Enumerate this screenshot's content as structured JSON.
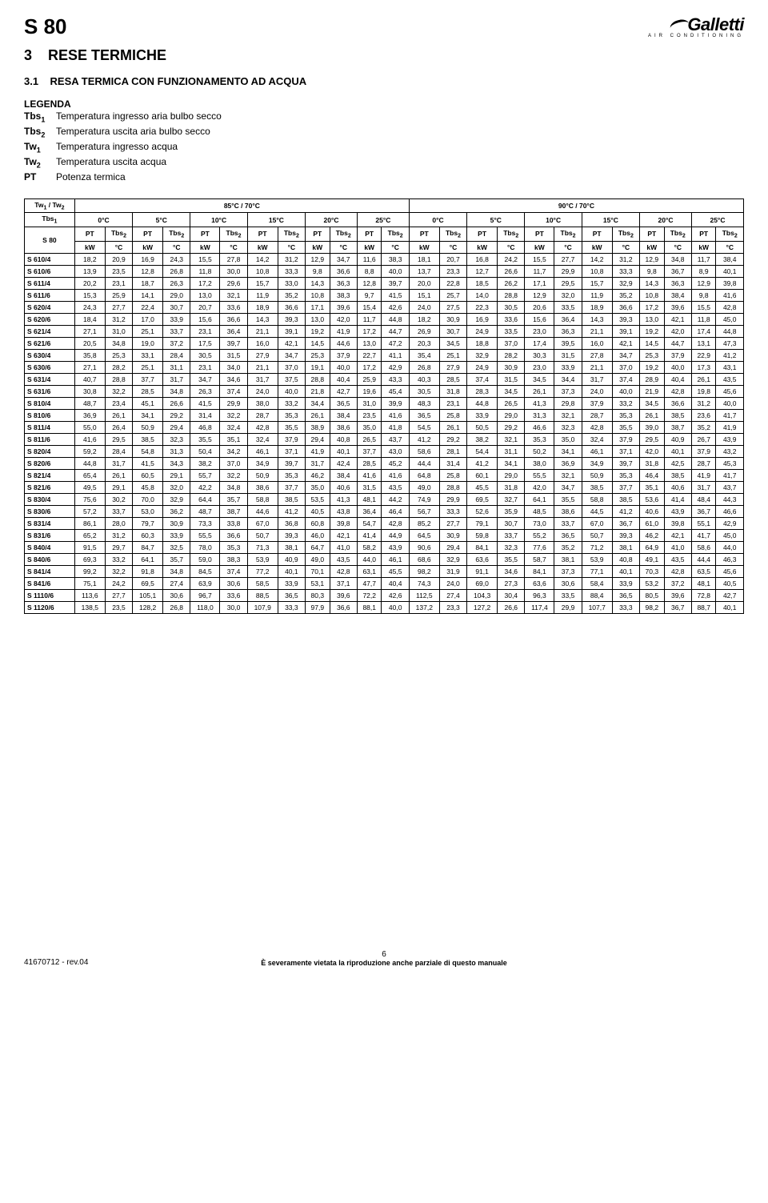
{
  "header": {
    "model": "S 80",
    "brand": "Galletti",
    "brand_sub": "AIR CONDITIONING"
  },
  "section": {
    "num": "3",
    "title": "RESE TERMICHE",
    "sub_num": "3.1",
    "sub_title": "RESA TERMICA CON FUNZIONAMENTO AD ACQUA"
  },
  "legenda": {
    "title": "LEGENDA",
    "items": [
      {
        "key": "Tbs",
        "sub": "1",
        "desc": "Temperatura ingresso aria bulbo secco"
      },
      {
        "key": "Tbs",
        "sub": "2",
        "desc": "Temperatura uscita aria bulbo secco"
      },
      {
        "key": "Tw",
        "sub": "1",
        "desc": "Temperatura ingresso acqua"
      },
      {
        "key": "Tw",
        "sub": "2",
        "desc": "Temperatura uscita acqua"
      },
      {
        "key": "PT",
        "sub": "",
        "desc": "Potenza termica"
      }
    ]
  },
  "table": {
    "tw_label": "Tw₁ / Tw₂",
    "tw_groups": [
      "85°C / 70°C",
      "90°C / 70°C"
    ],
    "tbs1_label": "Tbs₁",
    "tbs1_cols": [
      "0°C",
      "5°C",
      "10°C",
      "15°C",
      "20°C",
      "25°C",
      "0°C",
      "5°C",
      "10°C",
      "15°C",
      "20°C",
      "25°C"
    ],
    "model_label": "S 80",
    "pt_label": "PT",
    "tbs2_label": "Tbs₂",
    "unit_row": [
      "kW",
      "°C",
      "kW",
      "°C",
      "kW",
      "°C",
      "kW",
      "°C",
      "kW",
      "°C",
      "kW",
      "°C",
      "kW",
      "°C",
      "kW",
      "°C",
      "kW",
      "°C",
      "kW",
      "°C",
      "kW",
      "°C",
      "kW",
      "°C"
    ],
    "rows": [
      {
        "label": "S 610/4",
        "v": [
          "18,2",
          "20,9",
          "16,9",
          "24,3",
          "15,5",
          "27,8",
          "14,2",
          "31,2",
          "12,9",
          "34,7",
          "11,6",
          "38,3",
          "18,1",
          "20,7",
          "16,8",
          "24,2",
          "15,5",
          "27,7",
          "14,2",
          "31,2",
          "12,9",
          "34,8",
          "11,7",
          "38,4"
        ]
      },
      {
        "label": "S 610/6",
        "v": [
          "13,9",
          "23,5",
          "12,8",
          "26,8",
          "11,8",
          "30,0",
          "10,8",
          "33,3",
          "9,8",
          "36,6",
          "8,8",
          "40,0",
          "13,7",
          "23,3",
          "12,7",
          "26,6",
          "11,7",
          "29,9",
          "10,8",
          "33,3",
          "9,8",
          "36,7",
          "8,9",
          "40,1"
        ]
      },
      {
        "label": "S 611/4",
        "v": [
          "20,2",
          "23,1",
          "18,7",
          "26,3",
          "17,2",
          "29,6",
          "15,7",
          "33,0",
          "14,3",
          "36,3",
          "12,8",
          "39,7",
          "20,0",
          "22,8",
          "18,5",
          "26,2",
          "17,1",
          "29,5",
          "15,7",
          "32,9",
          "14,3",
          "36,3",
          "12,9",
          "39,8"
        ]
      },
      {
        "label": "S 611/6",
        "v": [
          "15,3",
          "25,9",
          "14,1",
          "29,0",
          "13,0",
          "32,1",
          "11,9",
          "35,2",
          "10,8",
          "38,3",
          "9,7",
          "41,5",
          "15,1",
          "25,7",
          "14,0",
          "28,8",
          "12,9",
          "32,0",
          "11,9",
          "35,2",
          "10,8",
          "38,4",
          "9,8",
          "41,6"
        ]
      },
      {
        "label": "S 620/4",
        "v": [
          "24,3",
          "27,7",
          "22,4",
          "30,7",
          "20,7",
          "33,6",
          "18,9",
          "36,6",
          "17,1",
          "39,6",
          "15,4",
          "42,6",
          "24,0",
          "27,5",
          "22,3",
          "30,5",
          "20,6",
          "33,5",
          "18,9",
          "36,6",
          "17,2",
          "39,6",
          "15,5",
          "42,8"
        ]
      },
      {
        "label": "S 620/6",
        "v": [
          "18,4",
          "31,2",
          "17,0",
          "33,9",
          "15,6",
          "36,6",
          "14,3",
          "39,3",
          "13,0",
          "42,0",
          "11,7",
          "44,8",
          "18,2",
          "30,9",
          "16,9",
          "33,6",
          "15,6",
          "36,4",
          "14,3",
          "39,3",
          "13,0",
          "42,1",
          "11,8",
          "45,0"
        ]
      },
      {
        "label": "S 621/4",
        "v": [
          "27,1",
          "31,0",
          "25,1",
          "33,7",
          "23,1",
          "36,4",
          "21,1",
          "39,1",
          "19,2",
          "41,9",
          "17,2",
          "44,7",
          "26,9",
          "30,7",
          "24,9",
          "33,5",
          "23,0",
          "36,3",
          "21,1",
          "39,1",
          "19,2",
          "42,0",
          "17,4",
          "44,8"
        ]
      },
      {
        "label": "S 621/6",
        "v": [
          "20,5",
          "34,8",
          "19,0",
          "37,2",
          "17,5",
          "39,7",
          "16,0",
          "42,1",
          "14,5",
          "44,6",
          "13,0",
          "47,2",
          "20,3",
          "34,5",
          "18,8",
          "37,0",
          "17,4",
          "39,5",
          "16,0",
          "42,1",
          "14,5",
          "44,7",
          "13,1",
          "47,3"
        ]
      },
      {
        "label": "S 630/4",
        "v": [
          "35,8",
          "25,3",
          "33,1",
          "28,4",
          "30,5",
          "31,5",
          "27,9",
          "34,7",
          "25,3",
          "37,9",
          "22,7",
          "41,1",
          "35,4",
          "25,1",
          "32,9",
          "28,2",
          "30,3",
          "31,5",
          "27,8",
          "34,7",
          "25,3",
          "37,9",
          "22,9",
          "41,2"
        ]
      },
      {
        "label": "S 630/6",
        "v": [
          "27,1",
          "28,2",
          "25,1",
          "31,1",
          "23,1",
          "34,0",
          "21,1",
          "37,0",
          "19,1",
          "40,0",
          "17,2",
          "42,9",
          "26,8",
          "27,9",
          "24,9",
          "30,9",
          "23,0",
          "33,9",
          "21,1",
          "37,0",
          "19,2",
          "40,0",
          "17,3",
          "43,1"
        ]
      },
      {
        "label": "S 631/4",
        "v": [
          "40,7",
          "28,8",
          "37,7",
          "31,7",
          "34,7",
          "34,6",
          "31,7",
          "37,5",
          "28,8",
          "40,4",
          "25,9",
          "43,3",
          "40,3",
          "28,5",
          "37,4",
          "31,5",
          "34,5",
          "34,4",
          "31,7",
          "37,4",
          "28,9",
          "40,4",
          "26,1",
          "43,5"
        ]
      },
      {
        "label": "S 631/6",
        "v": [
          "30,8",
          "32,2",
          "28,5",
          "34,8",
          "26,3",
          "37,4",
          "24,0",
          "40,0",
          "21,8",
          "42,7",
          "19,6",
          "45,4",
          "30,5",
          "31,8",
          "28,3",
          "34,5",
          "26,1",
          "37,3",
          "24,0",
          "40,0",
          "21,9",
          "42,8",
          "19,8",
          "45,6"
        ]
      },
      {
        "label": "S 810/4",
        "v": [
          "48,7",
          "23,4",
          "45,1",
          "26,6",
          "41,5",
          "29,9",
          "38,0",
          "33,2",
          "34,4",
          "36,5",
          "31,0",
          "39,9",
          "48,3",
          "23,1",
          "44,8",
          "26,5",
          "41,3",
          "29,8",
          "37,9",
          "33,2",
          "34,5",
          "36,6",
          "31,2",
          "40,0"
        ]
      },
      {
        "label": "S 810/6",
        "v": [
          "36,9",
          "26,1",
          "34,1",
          "29,2",
          "31,4",
          "32,2",
          "28,7",
          "35,3",
          "26,1",
          "38,4",
          "23,5",
          "41,6",
          "36,5",
          "25,8",
          "33,9",
          "29,0",
          "31,3",
          "32,1",
          "28,7",
          "35,3",
          "26,1",
          "38,5",
          "23,6",
          "41,7"
        ]
      },
      {
        "label": "S 811/4",
        "v": [
          "55,0",
          "26,4",
          "50,9",
          "29,4",
          "46,8",
          "32,4",
          "42,8",
          "35,5",
          "38,9",
          "38,6",
          "35,0",
          "41,8",
          "54,5",
          "26,1",
          "50,5",
          "29,2",
          "46,6",
          "32,3",
          "42,8",
          "35,5",
          "39,0",
          "38,7",
          "35,2",
          "41,9"
        ]
      },
      {
        "label": "S 811/6",
        "v": [
          "41,6",
          "29,5",
          "38,5",
          "32,3",
          "35,5",
          "35,1",
          "32,4",
          "37,9",
          "29,4",
          "40,8",
          "26,5",
          "43,7",
          "41,2",
          "29,2",
          "38,2",
          "32,1",
          "35,3",
          "35,0",
          "32,4",
          "37,9",
          "29,5",
          "40,9",
          "26,7",
          "43,9"
        ]
      },
      {
        "label": "S 820/4",
        "v": [
          "59,2",
          "28,4",
          "54,8",
          "31,3",
          "50,4",
          "34,2",
          "46,1",
          "37,1",
          "41,9",
          "40,1",
          "37,7",
          "43,0",
          "58,6",
          "28,1",
          "54,4",
          "31,1",
          "50,2",
          "34,1",
          "46,1",
          "37,1",
          "42,0",
          "40,1",
          "37,9",
          "43,2"
        ]
      },
      {
        "label": "S 820/6",
        "v": [
          "44,8",
          "31,7",
          "41,5",
          "34,3",
          "38,2",
          "37,0",
          "34,9",
          "39,7",
          "31,7",
          "42,4",
          "28,5",
          "45,2",
          "44,4",
          "31,4",
          "41,2",
          "34,1",
          "38,0",
          "36,9",
          "34,9",
          "39,7",
          "31,8",
          "42,5",
          "28,7",
          "45,3"
        ]
      },
      {
        "label": "S 821/4",
        "v": [
          "65,4",
          "26,1",
          "60,5",
          "29,1",
          "55,7",
          "32,2",
          "50,9",
          "35,3",
          "46,2",
          "38,4",
          "41,6",
          "41,6",
          "64,8",
          "25,8",
          "60,1",
          "29,0",
          "55,5",
          "32,1",
          "50,9",
          "35,3",
          "46,4",
          "38,5",
          "41,9",
          "41,7"
        ]
      },
      {
        "label": "S 821/6",
        "v": [
          "49,5",
          "29,1",
          "45,8",
          "32,0",
          "42,2",
          "34,8",
          "38,6",
          "37,7",
          "35,0",
          "40,6",
          "31,5",
          "43,5",
          "49,0",
          "28,8",
          "45,5",
          "31,8",
          "42,0",
          "34,7",
          "38,5",
          "37,7",
          "35,1",
          "40,6",
          "31,7",
          "43,7"
        ]
      },
      {
        "label": "S 830/4",
        "v": [
          "75,6",
          "30,2",
          "70,0",
          "32,9",
          "64,4",
          "35,7",
          "58,8",
          "38,5",
          "53,5",
          "41,3",
          "48,1",
          "44,2",
          "74,9",
          "29,9",
          "69,5",
          "32,7",
          "64,1",
          "35,5",
          "58,8",
          "38,5",
          "53,6",
          "41,4",
          "48,4",
          "44,3"
        ]
      },
      {
        "label": "S 830/6",
        "v": [
          "57,2",
          "33,7",
          "53,0",
          "36,2",
          "48,7",
          "38,7",
          "44,6",
          "41,2",
          "40,5",
          "43,8",
          "36,4",
          "46,4",
          "56,7",
          "33,3",
          "52,6",
          "35,9",
          "48,5",
          "38,6",
          "44,5",
          "41,2",
          "40,6",
          "43,9",
          "36,7",
          "46,6"
        ]
      },
      {
        "label": "S 831/4",
        "v": [
          "86,1",
          "28,0",
          "79,7",
          "30,9",
          "73,3",
          "33,8",
          "67,0",
          "36,8",
          "60,8",
          "39,8",
          "54,7",
          "42,8",
          "85,2",
          "27,7",
          "79,1",
          "30,7",
          "73,0",
          "33,7",
          "67,0",
          "36,7",
          "61,0",
          "39,8",
          "55,1",
          "42,9"
        ]
      },
      {
        "label": "S 831/6",
        "v": [
          "65,2",
          "31,2",
          "60,3",
          "33,9",
          "55,5",
          "36,6",
          "50,7",
          "39,3",
          "46,0",
          "42,1",
          "41,4",
          "44,9",
          "64,5",
          "30,9",
          "59,8",
          "33,7",
          "55,2",
          "36,5",
          "50,7",
          "39,3",
          "46,2",
          "42,1",
          "41,7",
          "45,0"
        ]
      },
      {
        "label": "S 840/4",
        "v": [
          "91,5",
          "29,7",
          "84,7",
          "32,5",
          "78,0",
          "35,3",
          "71,3",
          "38,1",
          "64,7",
          "41,0",
          "58,2",
          "43,9",
          "90,6",
          "29,4",
          "84,1",
          "32,3",
          "77,6",
          "35,2",
          "71,2",
          "38,1",
          "64,9",
          "41,0",
          "58,6",
          "44,0"
        ]
      },
      {
        "label": "S 840/6",
        "v": [
          "69,3",
          "33,2",
          "64,1",
          "35,7",
          "59,0",
          "38,3",
          "53,9",
          "40,9",
          "49,0",
          "43,5",
          "44,0",
          "46,1",
          "68,6",
          "32,9",
          "63,6",
          "35,5",
          "58,7",
          "38,1",
          "53,9",
          "40,8",
          "49,1",
          "43,5",
          "44,4",
          "46,3"
        ]
      },
      {
        "label": "S 841/4",
        "v": [
          "99,2",
          "32,2",
          "91,8",
          "34,8",
          "84,5",
          "37,4",
          "77,2",
          "40,1",
          "70,1",
          "42,8",
          "63,1",
          "45,5",
          "98,2",
          "31,9",
          "91,1",
          "34,6",
          "84,1",
          "37,3",
          "77,1",
          "40,1",
          "70,3",
          "42,8",
          "63,5",
          "45,6"
        ]
      },
      {
        "label": "S 841/6",
        "v": [
          "75,1",
          "24,2",
          "69,5",
          "27,4",
          "63,9",
          "30,6",
          "58,5",
          "33,9",
          "53,1",
          "37,1",
          "47,7",
          "40,4",
          "74,3",
          "24,0",
          "69,0",
          "27,3",
          "63,6",
          "30,6",
          "58,4",
          "33,9",
          "53,2",
          "37,2",
          "48,1",
          "40,5"
        ]
      },
      {
        "label": "S 1110/6",
        "v": [
          "113,6",
          "27,7",
          "105,1",
          "30,6",
          "96,7",
          "33,6",
          "88,5",
          "36,5",
          "80,3",
          "39,6",
          "72,2",
          "42,6",
          "112,5",
          "27,4",
          "104,3",
          "30,4",
          "96,3",
          "33,5",
          "88,4",
          "36,5",
          "80,5",
          "39,6",
          "72,8",
          "42,7"
        ]
      },
      {
        "label": "S 1120/6",
        "v": [
          "138,5",
          "23,5",
          "128,2",
          "26,8",
          "118,0",
          "30,0",
          "107,9",
          "33,3",
          "97,9",
          "36,6",
          "88,1",
          "40,0",
          "137,2",
          "23,3",
          "127,2",
          "26,6",
          "117,4",
          "29,9",
          "107,7",
          "33,3",
          "98,2",
          "36,7",
          "88,7",
          "40,1"
        ]
      }
    ]
  },
  "footer": {
    "left": "41670712 - rev.04",
    "page": "6",
    "note": "È severamente vietata la riproduzione anche parziale di questo manuale"
  }
}
